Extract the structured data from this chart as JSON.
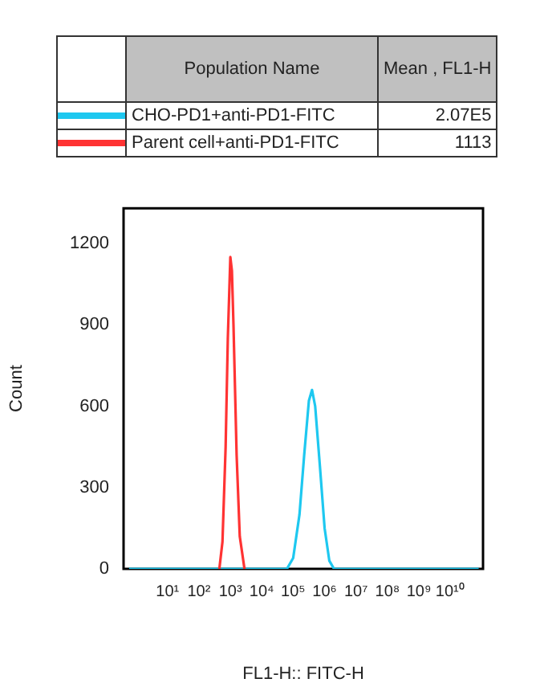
{
  "chart_data": {
    "type": "line",
    "xlabel": "FL1-H:: FITC-H",
    "ylabel": "Count",
    "log": "x",
    "grid": false,
    "legend": "top",
    "marker": "none",
    "line_style": "solid",
    "xlim": [
      0.4,
      110000000000
    ],
    "ylim": [
      0,
      1330
    ],
    "xticks": [
      {
        "value": 10,
        "label": "10¹"
      },
      {
        "value": 100,
        "label": "10²"
      },
      {
        "value": 1000,
        "label": "10³"
      },
      {
        "value": 10000,
        "label": "10⁴"
      },
      {
        "value": 100000,
        "label": "10⁵"
      },
      {
        "value": 1000000,
        "label": "10⁶"
      },
      {
        "value": 10000000,
        "label": "10⁷"
      },
      {
        "value": 100000000,
        "label": "10⁸"
      },
      {
        "value": 1000000000,
        "label": "10⁹"
      },
      {
        "value": 10000000000,
        "label": "10¹⁰"
      }
    ],
    "yticks": [
      0,
      300,
      600,
      900,
      1200
    ],
    "annotations": [
      "Population Name",
      "Mean , FL1-H",
      "2.07E5",
      "1113"
    ],
    "series": [
      {
        "name": "CHO-PD1+anti-PD1-FITC",
        "color": "#1ec8f0",
        "x": [
          0.6,
          63100,
          100000,
          158500,
          223900,
          316200,
          398100,
          501200,
          707900,
          1000000,
          1412500,
          1995000,
          80000000000
        ],
        "values": [
          0,
          0,
          40,
          200,
          420,
          620,
          660,
          600,
          380,
          150,
          30,
          0,
          0
        ]
      },
      {
        "name": "Parent cell+anti-PD1-FITC",
        "color": "#ff3333",
        "x": [
          447,
          562,
          708,
          832,
          1000,
          1122,
          1259,
          1585,
          1995,
          2818
        ],
        "values": [
          0,
          100,
          450,
          850,
          1150,
          1100,
          900,
          420,
          120,
          0
        ]
      }
    ]
  }
}
